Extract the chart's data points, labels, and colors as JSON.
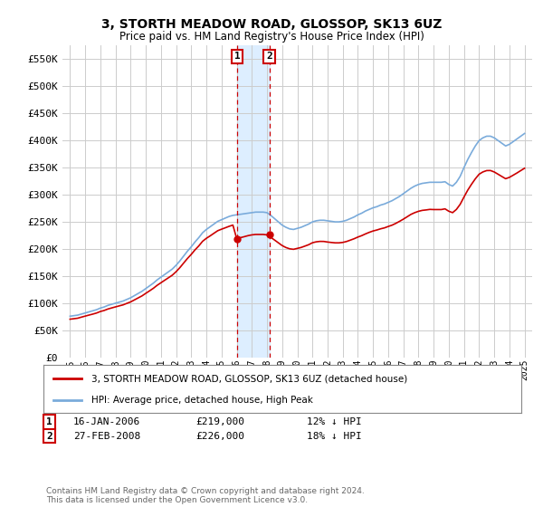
{
  "title": "3, STORTH MEADOW ROAD, GLOSSOP, SK13 6UZ",
  "subtitle": "Price paid vs. HM Land Registry's House Price Index (HPI)",
  "ylim": [
    0,
    575000
  ],
  "legend_line1": "3, STORTH MEADOW ROAD, GLOSSOP, SK13 6UZ (detached house)",
  "legend_line2": "HPI: Average price, detached house, High Peak",
  "transaction1_date": "16-JAN-2006",
  "transaction1_price": "£219,000",
  "transaction1_hpi": "12% ↓ HPI",
  "transaction1_year": 2006.04,
  "transaction1_val": 219000,
  "transaction2_date": "27-FEB-2008",
  "transaction2_price": "£226,000",
  "transaction2_hpi": "18% ↓ HPI",
  "transaction2_year": 2008.15,
  "transaction2_val": 226000,
  "footer": "Contains HM Land Registry data © Crown copyright and database right 2024.\nThis data is licensed under the Open Government Licence v3.0.",
  "hpi_color": "#7aabdb",
  "price_color": "#cc0000",
  "shade_color": "#ddeeff",
  "vline_color": "#cc0000",
  "background_plot": "#ffffff",
  "background_fig": "#ffffff",
  "grid_color": "#cccccc",
  "years_hpi": [
    1995.0,
    1995.25,
    1995.5,
    1995.75,
    1996.0,
    1996.25,
    1996.5,
    1996.75,
    1997.0,
    1997.25,
    1997.5,
    1997.75,
    1998.0,
    1998.25,
    1998.5,
    1998.75,
    1999.0,
    1999.25,
    1999.5,
    1999.75,
    2000.0,
    2000.25,
    2000.5,
    2000.75,
    2001.0,
    2001.25,
    2001.5,
    2001.75,
    2002.0,
    2002.25,
    2002.5,
    2002.75,
    2003.0,
    2003.25,
    2003.5,
    2003.75,
    2004.0,
    2004.25,
    2004.5,
    2004.75,
    2005.0,
    2005.25,
    2005.5,
    2005.75,
    2006.0,
    2006.25,
    2006.5,
    2006.75,
    2007.0,
    2007.25,
    2007.5,
    2007.75,
    2008.0,
    2008.25,
    2008.5,
    2008.75,
    2009.0,
    2009.25,
    2009.5,
    2009.75,
    2010.0,
    2010.25,
    2010.5,
    2010.75,
    2011.0,
    2011.25,
    2011.5,
    2011.75,
    2012.0,
    2012.25,
    2012.5,
    2012.75,
    2013.0,
    2013.25,
    2013.5,
    2013.75,
    2014.0,
    2014.25,
    2014.5,
    2014.75,
    2015.0,
    2015.25,
    2015.5,
    2015.75,
    2016.0,
    2016.25,
    2016.5,
    2016.75,
    2017.0,
    2017.25,
    2017.5,
    2017.75,
    2018.0,
    2018.25,
    2018.5,
    2018.75,
    2019.0,
    2019.25,
    2019.5,
    2019.75,
    2020.0,
    2020.25,
    2020.5,
    2020.75,
    2021.0,
    2021.25,
    2021.5,
    2021.75,
    2022.0,
    2022.25,
    2022.5,
    2022.75,
    2023.0,
    2023.25,
    2023.5,
    2023.75,
    2024.0,
    2024.25,
    2024.5,
    2024.75,
    2025.0
  ],
  "hpi_values": [
    76000,
    77000,
    78000,
    80000,
    82000,
    84000,
    86000,
    88000,
    91000,
    93000,
    96000,
    98000,
    100000,
    102000,
    104000,
    107000,
    110000,
    114000,
    118000,
    122000,
    127000,
    132000,
    137000,
    143000,
    148000,
    153000,
    158000,
    163000,
    170000,
    178000,
    187000,
    196000,
    204000,
    213000,
    221000,
    230000,
    236000,
    241000,
    246000,
    251000,
    254000,
    257000,
    260000,
    262000,
    263000,
    264000,
    265000,
    266000,
    267000,
    268000,
    268000,
    268000,
    267000,
    262000,
    256000,
    250000,
    244000,
    240000,
    237000,
    236000,
    238000,
    240000,
    243000,
    246000,
    250000,
    252000,
    253000,
    253000,
    252000,
    251000,
    250000,
    250000,
    251000,
    253000,
    256000,
    259000,
    263000,
    266000,
    270000,
    273000,
    276000,
    278000,
    281000,
    283000,
    286000,
    289000,
    293000,
    297000,
    302000,
    307000,
    312000,
    316000,
    319000,
    321000,
    322000,
    323000,
    323000,
    323000,
    323000,
    324000,
    319000,
    316000,
    323000,
    334000,
    350000,
    365000,
    378000,
    390000,
    400000,
    405000,
    408000,
    408000,
    405000,
    400000,
    395000,
    390000,
    393000,
    398000,
    403000,
    408000,
    413000
  ],
  "price_values": [
    70500,
    71400,
    72300,
    74300,
    76200,
    78100,
    79900,
    81900,
    84700,
    86600,
    89300,
    91300,
    93200,
    95100,
    96900,
    99700,
    102400,
    106100,
    109800,
    113500,
    118200,
    122800,
    127500,
    133000,
    137700,
    142400,
    147000,
    151700,
    158100,
    165600,
    174100,
    182500,
    190000,
    198400,
    205700,
    214200,
    219700,
    224200,
    229000,
    233700,
    236500,
    239100,
    241800,
    244100,
    219000,
    220900,
    222700,
    224600,
    226000,
    226800,
    226800,
    226800,
    226000,
    221400,
    216500,
    211400,
    206300,
    202700,
    200300,
    199400,
    201100,
    202800,
    205300,
    207900,
    211500,
    213200,
    214000,
    213900,
    212800,
    212000,
    211300,
    211300,
    212100,
    213800,
    216300,
    218900,
    222000,
    224600,
    227800,
    230700,
    233200,
    235000,
    237200,
    238900,
    241500,
    243900,
    247200,
    251000,
    255000,
    259400,
    263800,
    267000,
    269500,
    271200,
    272000,
    273000,
    272700,
    272700,
    272700,
    274000,
    269600,
    267000,
    272900,
    282400,
    295700,
    308500,
    319400,
    329400,
    337900,
    342100,
    344600,
    344700,
    342000,
    337900,
    333700,
    329600,
    332100,
    336100,
    340200,
    344600,
    348900
  ]
}
